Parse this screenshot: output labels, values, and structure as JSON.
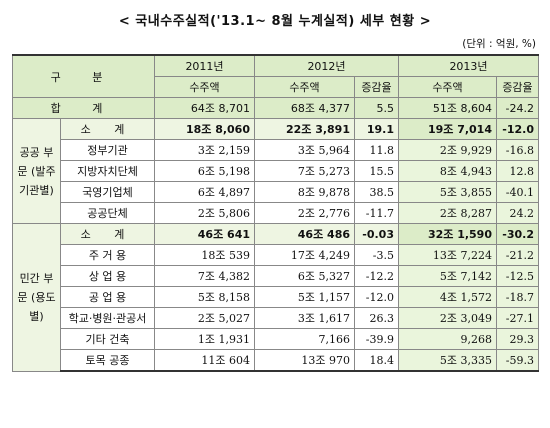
{
  "title": "< 국내수주실적('13.1~ 8월 누계실적) 세부 현황 >",
  "unit": "(단위 : 억원, %)",
  "header": {
    "category": "구 분",
    "years": [
      "2011년",
      "2012년",
      "2013년"
    ],
    "order_amount": "수주액",
    "change_rate": "증감율"
  },
  "total": {
    "label": "합 계",
    "y2011": "64조 8,701",
    "y2012": "68조 4,377",
    "rate2012": "5.5",
    "y2013": "51조 8,604",
    "rate2013": "-24.2"
  },
  "groups": [
    {
      "name": "공공 부문 (발주 기관별)",
      "subtotal": {
        "label": "소 계",
        "y2011": "18조 8,060",
        "y2012": "22조 3,891",
        "rate2012": "19.1",
        "y2013": "19조 7,014",
        "rate2013": "-12.0"
      },
      "rows": [
        {
          "label": "정부기관",
          "y2011": "3조 2,159",
          "y2012": "3조 5,964",
          "rate2012": "11.8",
          "y2013": "2조 9,929",
          "rate2013": "-16.8"
        },
        {
          "label": "지방자치단체",
          "y2011": "6조 5,198",
          "y2012": "7조 5,273",
          "rate2012": "15.5",
          "y2013": "8조 4,943",
          "rate2013": "12.8"
        },
        {
          "label": "국영기업체",
          "y2011": "6조 4,897",
          "y2012": "8조 9,878",
          "rate2012": "38.5",
          "y2013": "5조 3,855",
          "rate2013": "-40.1"
        },
        {
          "label": "공공단체",
          "y2011": "2조 5,806",
          "y2012": "2조 2,776",
          "rate2012": "-11.7",
          "y2013": "2조 8,287",
          "rate2013": "24.2"
        }
      ]
    },
    {
      "name": "민간 부문 (용도별)",
      "subtotal": {
        "label": "소 계",
        "y2011": "46조 641",
        "y2012": "46조 486",
        "rate2012": "-0.03",
        "y2013": "32조 1,590",
        "rate2013": "-30.2"
      },
      "rows": [
        {
          "label": "주 거 용",
          "y2011": "18조 539",
          "y2012": "17조 4,249",
          "rate2012": "-3.5",
          "y2013": "13조 7,224",
          "rate2013": "-21.2"
        },
        {
          "label": "상 업 용",
          "y2011": "7조 4,382",
          "y2012": "6조 5,327",
          "rate2012": "-12.2",
          "y2013": "5조 7,142",
          "rate2013": "-12.5"
        },
        {
          "label": "공 업 용",
          "y2011": "5조 8,158",
          "y2012": "5조 1,157",
          "rate2012": "-12.0",
          "y2013": "4조 1,572",
          "rate2013": "-18.7"
        },
        {
          "label": "학교·병원·관공서",
          "y2011": "2조 5,027",
          "y2012": "3조 1,617",
          "rate2012": "26.3",
          "y2013": "2조 3,049",
          "rate2013": "-27.1"
        },
        {
          "label": "기타 건축",
          "y2011": "1조 1,931",
          "y2012": "7,166",
          "rate2012": "-39.9",
          "y2013": "9,268",
          "rate2013": "29.3"
        },
        {
          "label": "토목 공종",
          "y2011": "11조 604",
          "y2012": "13조 970",
          "rate2012": "18.4",
          "y2013": "5조 3,335",
          "rate2013": "-59.3"
        }
      ]
    }
  ]
}
